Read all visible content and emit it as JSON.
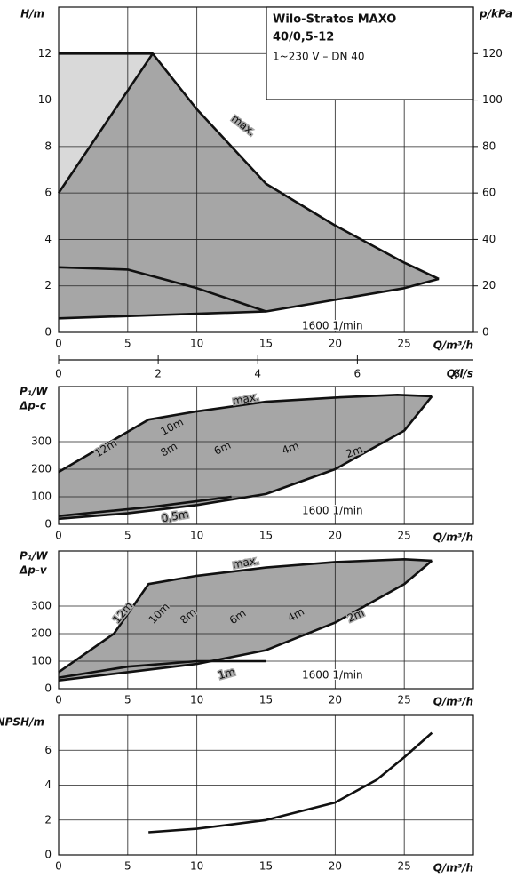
{
  "chart_data": [
    {
      "type": "line",
      "title": [
        "Wilo-Stratos MAXO",
        "40/0,5-12"
      ],
      "subtitle": "1~230 V – DN 40",
      "xlabel": "Q/m³/h",
      "ylabel": "H/m",
      "y2label": "p/kPa",
      "xlim": [
        0,
        30
      ],
      "xticks": [
        0,
        5,
        10,
        15,
        20,
        25
      ],
      "ylim": [
        0,
        14
      ],
      "yticks": [
        0,
        2,
        4,
        6,
        8,
        10,
        12
      ],
      "y2lim": [
        0,
        140
      ],
      "y2ticks": [
        0,
        20,
        40,
        60,
        80,
        100,
        120
      ],
      "x2label": "Q/l/s",
      "x2lim": [
        0,
        8.33
      ],
      "x2ticks": [
        0,
        2,
        4,
        6,
        8
      ],
      "grid": true,
      "series": [
        {
          "color": "#111",
          "x": [
            0,
            6.8,
            10,
            15,
            20,
            25,
            27.5
          ],
          "values": [
            12,
            12,
            9.6,
            6.4,
            4.6,
            3.0,
            2.3
          ]
        },
        {
          "color": "#111",
          "x": [
            0,
            6.8
          ],
          "values": [
            6,
            12
          ]
        },
        {
          "color": "#111",
          "x": [
            0,
            15,
            20,
            25,
            27.5
          ],
          "values": [
            0.6,
            0.9,
            1.4,
            1.9,
            2.3
          ]
        },
        {
          "color": "#111",
          "x": [
            0,
            5,
            10,
            15
          ],
          "values": [
            2.8,
            2.7,
            1.9,
            0.9
          ]
        }
      ],
      "annotations": [
        "max.",
        "1600 1/min"
      ]
    },
    {
      "type": "line",
      "xlabel": "Q/m³/h",
      "ylabel": [
        "P₁/W",
        "Δp-c"
      ],
      "xlim": [
        0,
        30
      ],
      "xticks": [
        0,
        5,
        10,
        15,
        20,
        25
      ],
      "ylim": [
        0,
        500
      ],
      "yticks": [
        0,
        100,
        200,
        300
      ],
      "grid": true,
      "series": [
        {
          "color": "#111",
          "x": [
            0,
            6.5,
            10,
            15,
            20,
            24.5,
            27
          ],
          "values": [
            190,
            380,
            410,
            445,
            460,
            470,
            465
          ]
        },
        {
          "color": "#111",
          "x": [
            0,
            5,
            10,
            15,
            20,
            25,
            27
          ],
          "values": [
            20,
            40,
            70,
            110,
            200,
            340,
            465
          ]
        },
        {
          "color": "#111",
          "x": [
            0,
            7,
            12.5
          ],
          "values": [
            30,
            65,
            100
          ]
        }
      ],
      "annotations": [
        "max.",
        "12m",
        "10m",
        "8m",
        "6m",
        "4m",
        "2m",
        "0,5m",
        "1600 1/min"
      ]
    },
    {
      "type": "line",
      "xlabel": "Q/m³/h",
      "ylabel": [
        "P₁/W",
        "Δp-v"
      ],
      "xlim": [
        0,
        30
      ],
      "xticks": [
        0,
        5,
        10,
        15,
        20,
        25
      ],
      "ylim": [
        0,
        500
      ],
      "yticks": [
        0,
        100,
        200,
        300
      ],
      "grid": true,
      "series": [
        {
          "color": "#111",
          "x": [
            0,
            4,
            6.5,
            10,
            15,
            20,
            25,
            27
          ],
          "values": [
            60,
            200,
            380,
            410,
            440,
            460,
            470,
            465
          ]
        },
        {
          "color": "#111",
          "x": [
            0,
            5,
            10,
            15,
            20,
            25,
            27
          ],
          "values": [
            30,
            60,
            90,
            140,
            240,
            380,
            465
          ]
        },
        {
          "color": "#111",
          "x": [
            0,
            5,
            10,
            15
          ],
          "values": [
            40,
            80,
            100,
            100
          ]
        }
      ],
      "annotations": [
        "max.",
        "12m",
        "10m",
        "8m",
        "6m",
        "4m",
        "2m",
        "1m",
        "1600 1/min"
      ]
    },
    {
      "type": "line",
      "xlabel": "Q/m³/h",
      "ylabel": "NPSH/m",
      "xlim": [
        0,
        30
      ],
      "xticks": [
        0,
        5,
        10,
        15,
        20,
        25
      ],
      "ylim": [
        0,
        8
      ],
      "yticks": [
        0,
        2,
        4,
        6
      ],
      "grid": true,
      "series": [
        {
          "color": "#111",
          "x": [
            6.5,
            10,
            15,
            20,
            23,
            25,
            27
          ],
          "values": [
            1.3,
            1.5,
            2.0,
            3.0,
            4.3,
            5.6,
            7.0
          ]
        }
      ],
      "annotations": []
    }
  ]
}
